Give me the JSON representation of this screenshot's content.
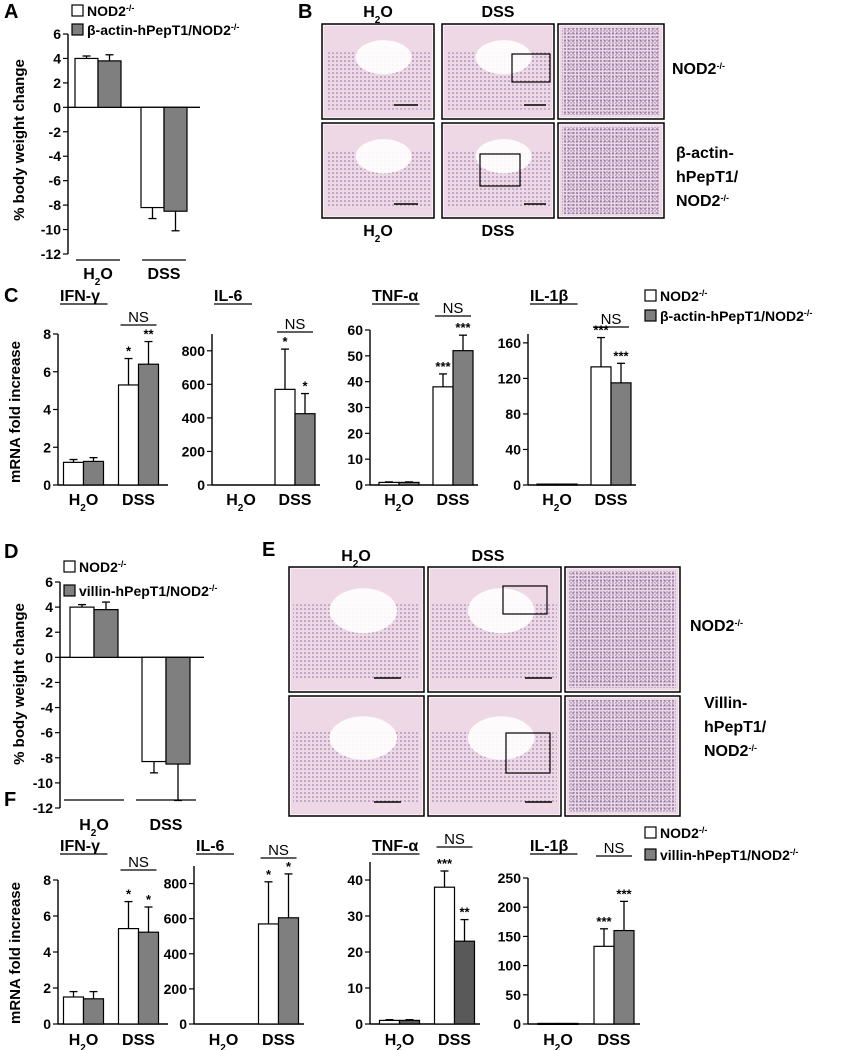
{
  "panels": {
    "A": "A",
    "B": "B",
    "C": "C",
    "D": "D",
    "E": "E",
    "F": "F"
  },
  "legend_top": {
    "wt": "NOD2",
    "tg": "β-actin-hPepT1/NOD2",
    "sup": "-/-"
  },
  "legend_bottom": {
    "wt": "NOD2",
    "tg": "villin-hPepT1/NOD2",
    "sup": "-/-"
  },
  "colors": {
    "wt": "#ffffff",
    "tg": "#7f7f7f",
    "tg_dark": "#595959",
    "stroke": "#000000",
    "he_bg": "#e9c6d8",
    "he_tissue": "#8f7db5"
  },
  "histology_top": {
    "cols": [
      "H2O",
      "DSS"
    ],
    "col_sub": "2",
    "row1_label": "NOD2",
    "row1_sup": "-/-",
    "row2_lines": [
      "β-actin-",
      "hPepT1/",
      "NOD2"
    ],
    "row2_sup": "-/-",
    "bottom_cols": [
      "H2O",
      "DSS"
    ]
  },
  "histology_bottom": {
    "cols": [
      "H2O",
      "DSS"
    ],
    "row1_label": "NOD2",
    "row1_sup": "-/-",
    "row2_lines": [
      "Villin-",
      "hPepT1/",
      "NOD2"
    ],
    "row2_sup": "-/-"
  },
  "chart_data": [
    {
      "id": "A",
      "type": "bar",
      "ylabel": "% body weight change",
      "categories": [
        "H2O",
        "DSS"
      ],
      "ylim": [
        -12,
        6
      ],
      "yticks": [
        6,
        4,
        2,
        0,
        -2,
        -4,
        -6,
        -8,
        -10,
        -12
      ],
      "series": [
        {
          "name": "NOD2-/-",
          "values": [
            4.0,
            -8.2
          ],
          "errors": [
            0.2,
            0.9
          ]
        },
        {
          "name": "β-actin-hPepT1/NOD2-/-",
          "values": [
            3.8,
            -8.5
          ],
          "errors": [
            0.5,
            1.6
          ]
        }
      ]
    },
    {
      "id": "C1",
      "type": "bar",
      "title": "IFN-γ",
      "ylabel": "mRNA fold increase",
      "categories": [
        "H2O",
        "DSS"
      ],
      "ylim": [
        0,
        8
      ],
      "yticks": [
        0,
        2,
        4,
        6,
        8
      ],
      "series": [
        {
          "values": [
            1.2,
            5.3
          ],
          "errors": [
            0.15,
            1.4
          ]
        },
        {
          "values": [
            1.25,
            6.4
          ],
          "errors": [
            0.2,
            1.2
          ]
        }
      ],
      "stars": [
        "*",
        "**"
      ],
      "ns": "NS"
    },
    {
      "id": "C2",
      "type": "bar",
      "title": "IL-6",
      "categories": [
        "H2O",
        "DSS"
      ],
      "ylim": [
        0,
        900
      ],
      "yticks": [
        0,
        200,
        400,
        600,
        800
      ],
      "series": [
        {
          "values": [
            0,
            570
          ],
          "errors": [
            0,
            240
          ]
        },
        {
          "values": [
            0,
            425
          ],
          "errors": [
            0,
            120
          ]
        }
      ],
      "stars": [
        "*",
        "*"
      ],
      "ns": "NS"
    },
    {
      "id": "C3",
      "type": "bar",
      "title": "TNF-α",
      "categories": [
        "H2O",
        "DSS"
      ],
      "ylim": [
        0,
        60
      ],
      "yticks": [
        0,
        10,
        20,
        30,
        40,
        50,
        60
      ],
      "series": [
        {
          "values": [
            1.0,
            38
          ],
          "errors": [
            0.2,
            5
          ]
        },
        {
          "values": [
            1.0,
            52
          ],
          "errors": [
            0.2,
            6
          ]
        }
      ],
      "stars": [
        "***",
        "***"
      ],
      "ns": "NS"
    },
    {
      "id": "C4",
      "type": "bar",
      "title": "IL-1β",
      "categories": [
        "H2O",
        "DSS"
      ],
      "ylim": [
        0,
        170
      ],
      "yticks": [
        0,
        40,
        80,
        120,
        160
      ],
      "series": [
        {
          "values": [
            1,
            133
          ],
          "errors": [
            0,
            33
          ]
        },
        {
          "values": [
            1,
            115
          ],
          "errors": [
            0,
            22
          ]
        }
      ],
      "stars": [
        "***",
        "***"
      ],
      "ns": "NS"
    },
    {
      "id": "D",
      "type": "bar",
      "ylabel": "% body weight change",
      "categories": [
        "H2O",
        "DSS"
      ],
      "ylim": [
        -12,
        6
      ],
      "yticks": [
        6,
        4,
        2,
        0,
        -2,
        -4,
        -6,
        -8,
        -10,
        -12
      ],
      "series": [
        {
          "name": "NOD2-/-",
          "values": [
            4.0,
            -8.3
          ],
          "errors": [
            0.2,
            0.9
          ]
        },
        {
          "name": "villin-hPepT1/NOD2-/-",
          "values": [
            3.8,
            -8.5
          ],
          "errors": [
            0.6,
            2.9
          ]
        }
      ]
    },
    {
      "id": "F1",
      "type": "bar",
      "title": "IFN-γ",
      "ylabel": "mRNA fold increase",
      "categories": [
        "H2O",
        "DSS"
      ],
      "ylim": [
        0,
        8
      ],
      "yticks": [
        0,
        2,
        4,
        6,
        8
      ],
      "series": [
        {
          "values": [
            1.5,
            5.3
          ],
          "errors": [
            0.3,
            1.5
          ]
        },
        {
          "values": [
            1.4,
            5.1
          ],
          "errors": [
            0.4,
            1.4
          ]
        }
      ],
      "stars": [
        "*",
        "*"
      ],
      "ns": "NS"
    },
    {
      "id": "F2",
      "type": "bar",
      "title": "IL-6",
      "categories": [
        "H2O",
        "DSS"
      ],
      "ylim": [
        0,
        900
      ],
      "yticks": [
        0,
        200,
        400,
        600,
        800
      ],
      "series": [
        {
          "values": [
            0,
            570
          ],
          "errors": [
            0,
            240
          ]
        },
        {
          "values": [
            0,
            605
          ],
          "errors": [
            0,
            250
          ]
        }
      ],
      "stars": [
        "*",
        "*"
      ],
      "ns": "NS"
    },
    {
      "id": "F3",
      "type": "bar",
      "title": "TNF-α",
      "categories": [
        "H2O",
        "DSS"
      ],
      "ylim": [
        0,
        45
      ],
      "yticks": [
        0,
        10,
        20,
        30,
        40
      ],
      "series": [
        {
          "values": [
            1.0,
            38
          ],
          "errors": [
            0.2,
            4.5
          ]
        },
        {
          "values": [
            1.0,
            23
          ],
          "errors": [
            0.2,
            6
          ]
        }
      ],
      "stars": [
        "***",
        "**"
      ],
      "ns": "NS",
      "tg_dark": true
    },
    {
      "id": "F4",
      "type": "bar",
      "title": "IL-1β",
      "categories": [
        "H2O",
        "DSS"
      ],
      "ylim": [
        0,
        250
      ],
      "yticks": [
        0,
        50,
        100,
        150,
        200,
        250
      ],
      "series": [
        {
          "values": [
            1,
            133
          ],
          "errors": [
            0,
            30
          ]
        },
        {
          "values": [
            1,
            160
          ],
          "errors": [
            0,
            50
          ]
        }
      ],
      "stars": [
        "***",
        "***"
      ],
      "ns": "NS"
    }
  ]
}
